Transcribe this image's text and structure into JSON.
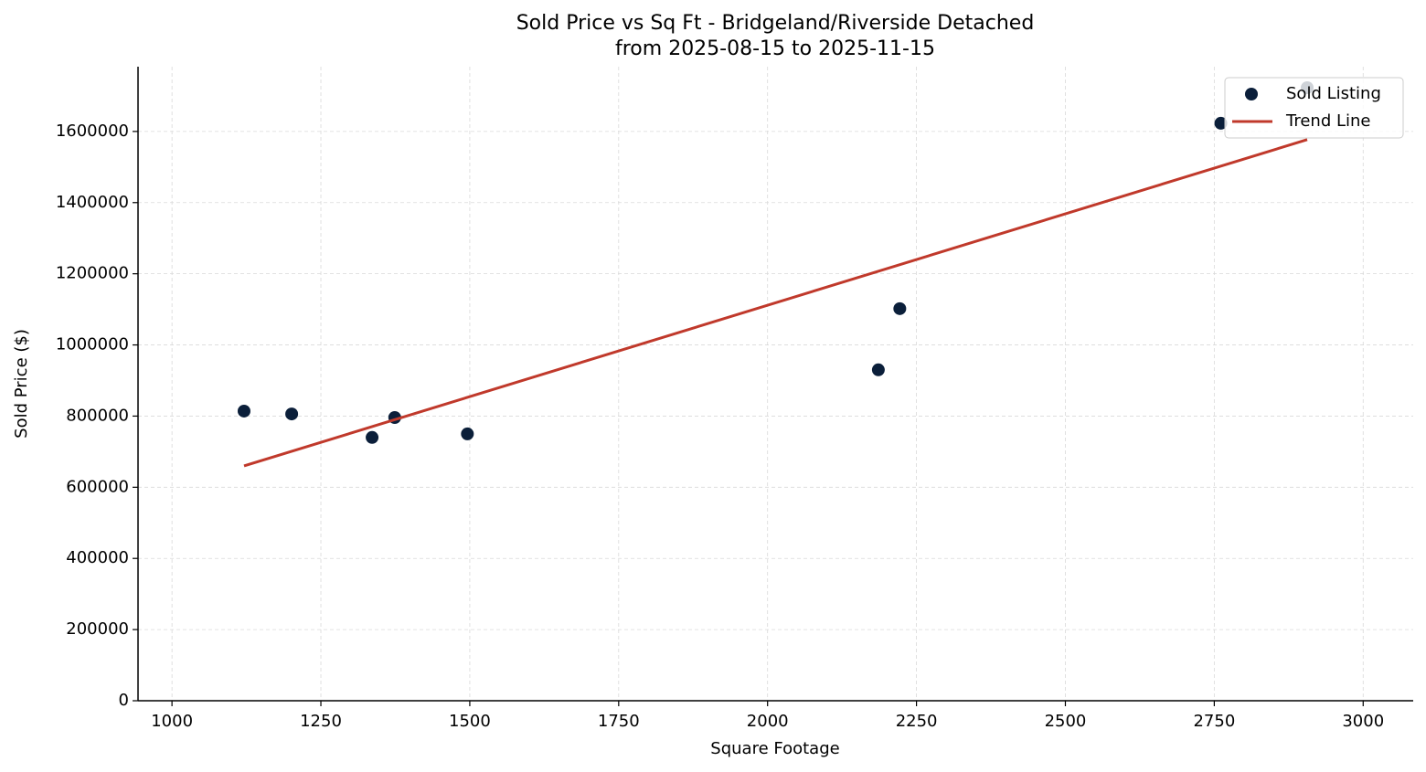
{
  "chart_data": {
    "type": "scatter",
    "title": "Sold Price vs Sq Ft - Bridgeland/Riverside Detached",
    "subtitle": "from 2025-08-15 to 2025-11-15",
    "x_label": "Square Footage",
    "y_label": "Sold Price ($)",
    "xlim": [
      943,
      3084
    ],
    "ylim": [
      0,
      1782000
    ],
    "xticks": [
      1000,
      1250,
      1500,
      1750,
      2000,
      2250,
      2500,
      2750,
      3000
    ],
    "yticks": [
      0,
      200000,
      400000,
      600000,
      800000,
      1000000,
      1200000,
      1400000,
      1600000
    ],
    "grid": true,
    "legend": "upper right",
    "series": [
      {
        "name": "Sold Listing",
        "type": "scatter",
        "color": "#0b1f3a",
        "x": [
          1121,
          1201,
          1336,
          1374,
          1496,
          2186,
          2222,
          2761,
          2906
        ],
        "values": [
          814000,
          806000,
          740000,
          796000,
          750000,
          930000,
          1102000,
          1623000,
          1723000
        ]
      },
      {
        "name": "Trend Line",
        "type": "line",
        "color": "#c0392b",
        "x": [
          1121,
          2906
        ],
        "values": [
          660000,
          1577000
        ]
      }
    ]
  }
}
